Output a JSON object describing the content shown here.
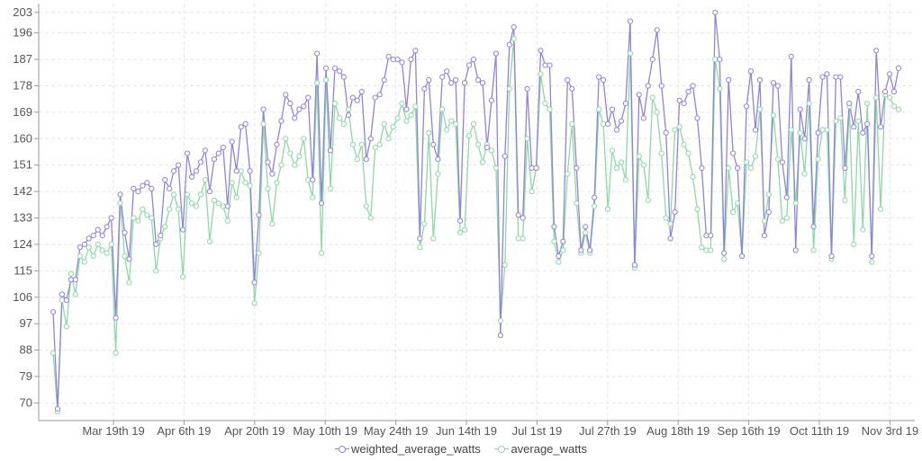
{
  "chart_data": {
    "type": "line",
    "title": "",
    "xlabel": "",
    "ylabel": "",
    "ylim": [
      64,
      206
    ],
    "y_ticks": [
      70,
      79,
      88,
      97,
      106,
      115,
      124,
      133,
      142,
      151,
      160,
      169,
      178,
      187,
      196,
      203
    ],
    "x_tick_labels": [
      "Mar 19th 19",
      "Apr 6th 19",
      "Apr 20th 19",
      "May 10th 19",
      "May 24th 19",
      "Jun 14th 19",
      "Jul 1st 19",
      "Jul 27th 19",
      "Aug 18th 19",
      "Sep 16th 19",
      "Oct 11th 19",
      "Nov 3rd 19"
    ],
    "grid": true,
    "legend_position": "bottom-center",
    "colors": {
      "weighted_average_watts": "#8f84d8",
      "average_watts": "#8fd8a6"
    },
    "series": [
      {
        "name": "weighted_average_watts",
        "values": [
          101,
          68,
          107,
          105,
          112,
          112,
          123,
          124,
          126,
          127,
          129,
          127,
          130,
          133,
          99,
          141,
          128,
          119,
          143,
          142,
          144,
          145,
          143,
          124,
          127,
          146,
          143,
          149,
          151,
          129,
          155,
          147,
          149,
          152,
          156,
          142,
          153,
          155,
          157,
          137,
          159,
          149,
          164,
          165,
          149,
          111,
          134,
          170,
          152,
          148,
          158,
          166,
          175,
          172,
          167,
          170,
          171,
          174,
          146,
          189,
          138,
          184,
          156,
          184,
          183,
          181,
          168,
          174,
          173,
          176,
          153,
          160,
          174,
          175,
          180,
          188,
          187,
          187,
          186,
          170,
          187,
          190,
          126,
          177,
          180,
          158,
          153,
          181,
          183,
          179,
          180,
          132,
          179,
          185,
          187,
          180,
          179,
          157,
          173,
          189,
          93,
          154,
          192,
          198,
          134,
          133,
          177,
          150,
          150,
          190,
          185,
          185,
          130,
          120,
          125,
          180,
          177,
          150,
          122,
          130,
          122,
          140,
          181,
          180,
          165,
          170,
          163,
          166,
          172,
          200,
          117,
          175,
          167,
          178,
          187,
          197,
          178,
          162,
          126,
          135,
          173,
          172,
          176,
          178,
          167,
          150,
          127,
          127,
          203,
          187,
          121,
          180,
          155,
          150,
          120,
          171,
          183,
          163,
          180,
          127,
          135,
          179,
          178,
          152,
          140,
          188,
          122,
          170,
          160,
          180,
          130,
          162,
          181,
          182,
          120,
          181,
          181,
          150,
          172,
          164,
          176,
          162,
          165,
          120,
          190,
          164,
          176,
          182,
          176,
          184
        ]
      },
      {
        "name": "average_watts",
        "values": [
          87,
          67,
          105,
          96,
          114,
          107,
          120,
          118,
          123,
          120,
          124,
          122,
          121,
          124,
          87,
          138,
          120,
          111,
          133,
          132,
          136,
          134,
          133,
          115,
          126,
          130,
          136,
          141,
          136,
          113,
          141,
          138,
          137,
          141,
          146,
          125,
          139,
          138,
          137,
          132,
          145,
          140,
          149,
          145,
          144,
          104,
          121,
          165,
          143,
          131,
          145,
          151,
          160,
          155,
          151,
          154,
          160,
          146,
          140,
          179,
          121,
          180,
          143,
          172,
          167,
          165,
          170,
          158,
          153,
          158,
          137,
          133,
          157,
          158,
          165,
          160,
          164,
          167,
          172,
          166,
          168,
          171,
          123,
          131,
          162,
          126,
          148,
          170,
          163,
          166,
          165,
          128,
          129,
          161,
          165,
          158,
          152,
          158,
          156,
          150,
          98,
          117,
          177,
          194,
          126,
          126,
          160,
          142,
          150,
          182,
          172,
          170,
          125,
          118,
          122,
          148,
          165,
          138,
          121,
          128,
          121,
          137,
          170,
          165,
          136,
          156,
          150,
          152,
          146,
          189,
          116,
          154,
          151,
          139,
          174,
          169,
          155,
          133,
          131,
          163,
          164,
          158,
          155,
          147,
          136,
          123,
          122,
          122,
          187,
          177,
          119,
          150,
          135,
          138,
          120,
          152,
          150,
          154,
          170,
          132,
          141,
          168,
          153,
          132,
          133,
          163,
          138,
          162,
          148,
          172,
          122,
          153,
          163,
          163,
          119,
          166,
          167,
          139,
          171,
          124,
          166,
          129,
          172,
          118,
          174,
          136,
          175,
          174,
          171,
          170
        ]
      }
    ]
  }
}
